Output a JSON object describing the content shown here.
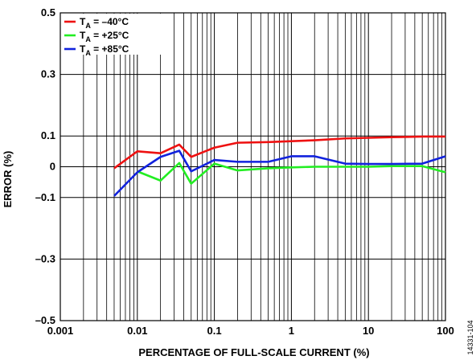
{
  "chart_data": {
    "type": "line",
    "title": "",
    "xlabel": "PERCENTAGE OF FULL-SCALE CURRENT (%)",
    "ylabel": "ERROR (%)",
    "xscale": "log",
    "xlim": [
      0.001,
      100
    ],
    "ylim": [
      -0.5,
      0.5
    ],
    "grid": true,
    "legend_position": "top-left",
    "x_ticks": [
      {
        "value": 0.001,
        "label": "0.001"
      },
      {
        "value": 0.01,
        "label": "0.01"
      },
      {
        "value": 0.1,
        "label": "0.1"
      },
      {
        "value": 1,
        "label": "1"
      },
      {
        "value": 10,
        "label": "10"
      },
      {
        "value": 100,
        "label": "100"
      }
    ],
    "y_ticks": [
      {
        "value": 0.5,
        "label": "0.5"
      },
      {
        "value": 0.3,
        "label": "0.3"
      },
      {
        "value": 0.1,
        "label": "0.1"
      },
      {
        "value": 0,
        "label": "0"
      },
      {
        "value": -0.1,
        "label": "–0.1"
      },
      {
        "value": -0.3,
        "label": "–0.3"
      },
      {
        "value": -0.5,
        "label": "–0.5"
      }
    ],
    "series": [
      {
        "name_prefix": "T",
        "name_sub": "A",
        "name_suffix": " = –40°C",
        "color": "#ee1111",
        "x": [
          0.005,
          0.01,
          0.02,
          0.035,
          0.05,
          0.1,
          0.2,
          0.5,
          1,
          2,
          5,
          10,
          20,
          50,
          100
        ],
        "y": [
          -0.005,
          0.05,
          0.044,
          0.072,
          0.032,
          0.062,
          0.078,
          0.08,
          0.083,
          0.086,
          0.092,
          0.094,
          0.096,
          0.098,
          0.098
        ]
      },
      {
        "name_prefix": "T",
        "name_sub": "A",
        "name_suffix": " = +25°C",
        "color": "#22ee22",
        "x": [
          0.01,
          0.02,
          0.035,
          0.05,
          0.1,
          0.2,
          0.5,
          1,
          2,
          5,
          10,
          20,
          50,
          100
        ],
        "y": [
          -0.015,
          -0.045,
          0.012,
          -0.055,
          0.01,
          -0.012,
          -0.005,
          -0.002,
          0.0,
          0.0,
          0.0,
          0.002,
          0.002,
          -0.018
        ]
      },
      {
        "name_prefix": "T",
        "name_sub": "A",
        "name_suffix": " = +85°C",
        "color": "#1122dd",
        "x": [
          0.005,
          0.01,
          0.02,
          0.035,
          0.05,
          0.1,
          0.2,
          0.5,
          1,
          2,
          5,
          10,
          20,
          50,
          100
        ],
        "y": [
          -0.095,
          -0.018,
          0.032,
          0.052,
          -0.015,
          0.022,
          0.016,
          0.016,
          0.034,
          0.034,
          0.01,
          0.009,
          0.009,
          0.01,
          0.034
        ]
      }
    ]
  },
  "figure_id": "14331-104"
}
